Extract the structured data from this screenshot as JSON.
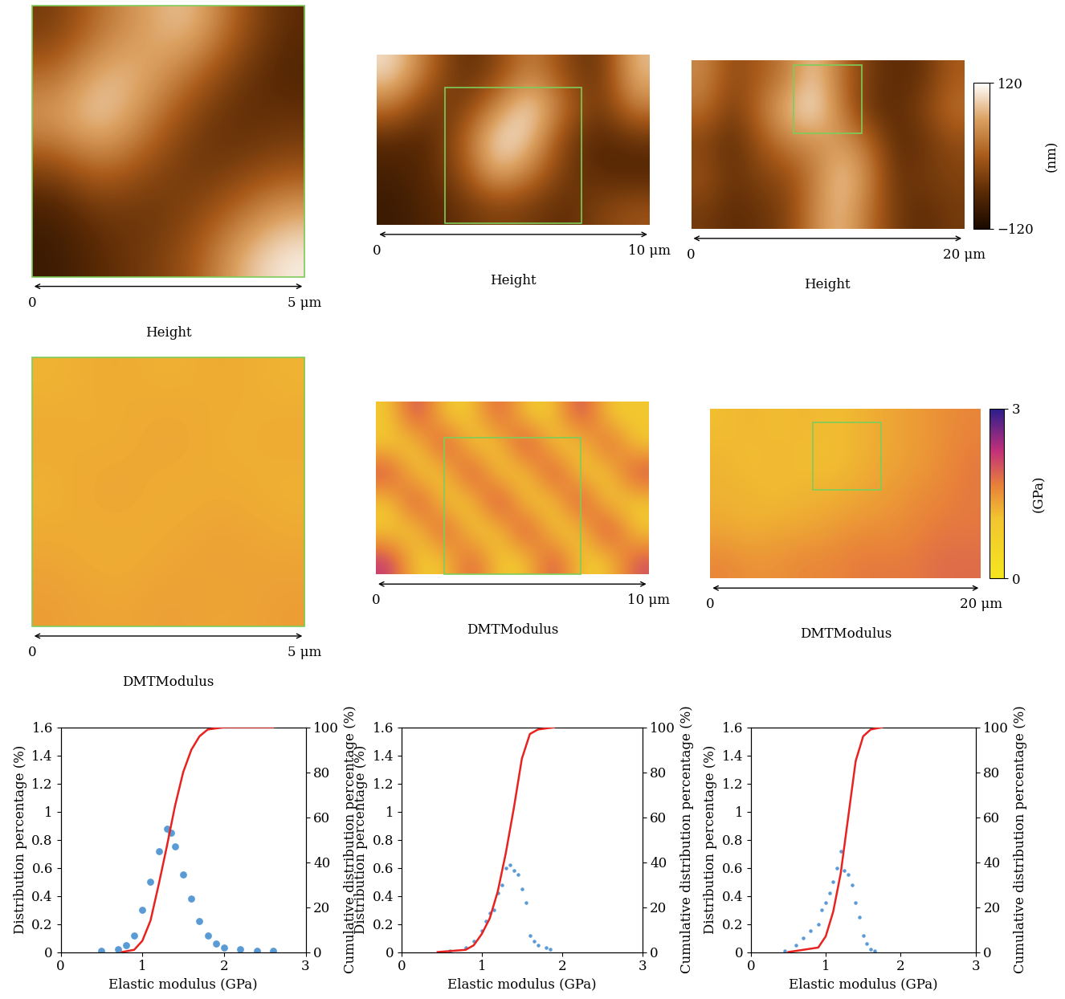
{
  "chart_data": [
    {
      "type": "heatmap",
      "map": "height",
      "xlabel": "Height",
      "xlim": [
        0,
        5
      ],
      "ylim": [
        0,
        5
      ],
      "zlim": [
        -120,
        120
      ],
      "tick_labels": false,
      "region": [
        0,
        0,
        5,
        5
      ],
      "scale_bar": [
        {
          "value": 0,
          "label": "0"
        },
        {
          "value": 5,
          "label": "5 μm"
        }
      ],
      "cells": [
        [
          -40,
          20,
          60,
          90,
          0,
          -60
        ],
        [
          10,
          80,
          70,
          20,
          -40,
          -70
        ],
        [
          60,
          100,
          40,
          -30,
          -60,
          -50
        ],
        [
          -20,
          30,
          -10,
          -50,
          -40,
          -20
        ],
        [
          -80,
          -40,
          -50,
          -30,
          10,
          60
        ],
        [
          -90,
          -60,
          -40,
          -10,
          70,
          110
        ]
      ]
    },
    {
      "type": "heatmap",
      "map": "height",
      "xlabel": "Height",
      "xlim": [
        0,
        10
      ],
      "ylim": [
        0,
        6.24
      ],
      "zlim": [
        -120,
        120
      ],
      "tick_labels": false,
      "region": [
        2.5,
        0.05,
        7.5,
        5.05
      ],
      "scale_bar": [
        {
          "value": 0,
          "label": "0"
        },
        {
          "value": 10,
          "label": "10 μm"
        }
      ],
      "cells": [
        [
          100,
          20,
          -60,
          -30,
          40,
          -20,
          -60,
          80
        ],
        [
          30,
          -40,
          -40,
          40,
          110,
          20,
          -50,
          40
        ],
        [
          -60,
          -70,
          0,
          110,
          90,
          -30,
          -70,
          -50
        ],
        [
          -80,
          -60,
          -20,
          80,
          30,
          -40,
          -60,
          -70
        ],
        [
          -90,
          -70,
          -50,
          -30,
          -40,
          -60,
          -30,
          -10
        ]
      ]
    },
    {
      "type": "heatmap",
      "map": "height",
      "xlabel": "Height",
      "xlim": [
        0,
        20
      ],
      "ylim": [
        0,
        12.35
      ],
      "zlim": [
        -120,
        120
      ],
      "tick_labels": false,
      "region": [
        7.5,
        7.0,
        12.5,
        12.0
      ],
      "scale_bar": [
        {
          "value": 0,
          "label": "0"
        },
        {
          "value": 20,
          "label": "20 μm"
        }
      ],
      "colorbar": {
        "label": "(nm)",
        "lim": [
          -120,
          120
        ],
        "ticks": [
          {
            "value": -120,
            "label": "−120"
          },
          120
        ]
      },
      "cells": [
        [
          40,
          -20,
          0,
          30,
          90,
          20,
          -40,
          -60,
          -50,
          0
        ],
        [
          20,
          -40,
          20,
          80,
          110,
          30,
          -50,
          -60,
          -30,
          20
        ],
        [
          -30,
          -60,
          -10,
          30,
          40,
          60,
          20,
          -60,
          -50,
          -20
        ],
        [
          -10,
          -50,
          -30,
          -20,
          30,
          90,
          40,
          -50,
          -40,
          -30
        ],
        [
          -40,
          -60,
          -50,
          -30,
          40,
          80,
          20,
          -40,
          -60,
          -40
        ]
      ]
    },
    {
      "type": "heatmap",
      "map": "modulus",
      "xlabel": "DMTModulus",
      "xlim": [
        0,
        5
      ],
      "ylim": [
        0,
        5
      ],
      "zlim": [
        0,
        3
      ],
      "tick_labels": false,
      "region": [
        0,
        0,
        5,
        5
      ],
      "scale_bar": [
        {
          "value": 0,
          "label": "0"
        },
        {
          "value": 5,
          "label": "5 μm"
        }
      ],
      "cells": [
        [
          1.2,
          1.3,
          1.2,
          1.3,
          1.2
        ],
        [
          1.3,
          1.2,
          1.4,
          1.2,
          1.3
        ],
        [
          1.2,
          1.4,
          1.2,
          1.3,
          1.2
        ],
        [
          1.3,
          1.2,
          1.3,
          1.4,
          1.3
        ],
        [
          1.4,
          1.3,
          1.4,
          1.3,
          1.4
        ]
      ]
    },
    {
      "type": "heatmap",
      "map": "modulus",
      "xlabel": "DMTModulus",
      "xlim": [
        0,
        10
      ],
      "ylim": [
        0,
        6.32
      ],
      "zlim": [
        0,
        3
      ],
      "tick_labels": false,
      "region": [
        2.5,
        0,
        7.5,
        5
      ],
      "scale_bar": [
        {
          "value": 0,
          "label": "0"
        },
        {
          "value": 10,
          "label": "10 μm"
        }
      ],
      "cells": [
        [
          1.0,
          2.2,
          1.0,
          1.0,
          2.0,
          1.0,
          1.0,
          2.2,
          1.0,
          1.0
        ],
        [
          1.0,
          1.0,
          2.2,
          1.0,
          1.0,
          2.3,
          1.0,
          1.0,
          2.0,
          1.0
        ],
        [
          2.1,
          1.0,
          1.0,
          2.2,
          1.0,
          1.0,
          2.2,
          1.0,
          1.0,
          2.1
        ],
        [
          1.0,
          2.2,
          1.0,
          1.0,
          2.3,
          1.0,
          1.0,
          2.2,
          1.0,
          1.0
        ],
        [
          1.0,
          1.0,
          2.1,
          1.0,
          1.0,
          2.2,
          1.0,
          1.0,
          2.3,
          1.0
        ],
        [
          2.2,
          1.0,
          1.0,
          2.0,
          1.0,
          1.0,
          2.1,
          1.0,
          1.0,
          2.0
        ]
      ]
    },
    {
      "type": "heatmap",
      "map": "modulus",
      "xlabel": "DMTModulus",
      "xlim": [
        0,
        20
      ],
      "ylim": [
        0,
        12.6
      ],
      "zlim": [
        0,
        3
      ],
      "tick_labels": false,
      "region": [
        7.6,
        6.6,
        12.6,
        11.6
      ],
      "scale_bar": [
        {
          "value": 0,
          "label": "0"
        },
        {
          "value": 20,
          "label": "20 μm"
        }
      ],
      "colorbar": {
        "label": "(GPa)",
        "lim": [
          0,
          3
        ],
        "ticks": [
          0,
          3
        ]
      },
      "cells": [
        [
          1.1,
          1.2,
          1.1,
          1.2,
          1.1,
          1.2,
          1.3,
          1.4,
          1.5,
          1.6
        ],
        [
          1.2,
          1.1,
          1.2,
          1.1,
          1.1,
          1.2,
          1.3,
          1.4,
          1.5,
          1.7
        ],
        [
          1.2,
          1.2,
          1.1,
          1.2,
          1.2,
          1.3,
          1.4,
          1.5,
          1.6,
          1.7
        ],
        [
          1.3,
          1.2,
          1.3,
          1.3,
          1.4,
          1.5,
          1.5,
          1.6,
          1.7,
          1.7
        ],
        [
          1.6,
          1.5,
          1.5,
          1.6,
          1.6,
          1.7,
          1.7,
          1.7,
          1.8,
          1.8
        ]
      ]
    },
    {
      "type": "scatter",
      "xlabel": "Elastic modulus (GPa)",
      "ylabel": "Distribution percentage (%)",
      "y2label": "Cumulative distribution percentage (%)",
      "xlim": [
        0,
        3
      ],
      "xticks": [
        0,
        1,
        2,
        3
      ],
      "ylim": [
        0,
        1.6
      ],
      "yticks": [
        0,
        0.2,
        0.4,
        0.6,
        0.8,
        1,
        1.2,
        1.4,
        1.6
      ],
      "y2lim": [
        0,
        100
      ],
      "y2ticks": [
        0,
        20,
        40,
        60,
        80,
        100
      ],
      "series": [
        {
          "type": "scatter",
          "color": "#5b9bd5",
          "marker": "o",
          "x": [
            0.5,
            0.7,
            0.8,
            0.9,
            1.0,
            1.1,
            1.2,
            1.3,
            1.35,
            1.4,
            1.5,
            1.6,
            1.7,
            1.8,
            1.9,
            2.0,
            2.2,
            2.4,
            2.6
          ],
          "values": [
            0.01,
            0.02,
            0.05,
            0.12,
            0.3,
            0.5,
            0.72,
            0.88,
            0.85,
            0.75,
            0.55,
            0.38,
            0.22,
            0.12,
            0.06,
            0.03,
            0.02,
            0.01,
            0.01
          ]
        },
        {
          "type": "line",
          "axis": "y2",
          "color": "#e8231f",
          "x": [
            0.75,
            0.9,
            1.0,
            1.1,
            1.2,
            1.3,
            1.4,
            1.5,
            1.6,
            1.7,
            1.8,
            2.0,
            2.6
          ],
          "values": [
            0,
            1,
            5,
            14,
            30,
            47,
            65,
            80,
            90,
            96,
            99,
            100,
            100
          ]
        }
      ]
    },
    {
      "type": "scatter",
      "xlabel": "Elastic modulus (GPa)",
      "ylabel": "Distribution percentage (%)",
      "y2label": "Cumulative distribution percentage (%)",
      "xlim": [
        0,
        3
      ],
      "xticks": [
        0,
        1,
        2,
        3
      ],
      "ylim": [
        0,
        1.6
      ],
      "yticks": [
        0,
        0.2,
        0.4,
        0.6,
        0.8,
        1,
        1.2,
        1.4,
        1.6
      ],
      "y2lim": [
        0,
        100
      ],
      "y2ticks": [
        0,
        20,
        40,
        60,
        80,
        100
      ],
      "series": [
        {
          "type": "scatter",
          "color": "#5b9bd5",
          "marker": "o",
          "x": [
            0.6,
            0.8,
            0.9,
            1.0,
            1.05,
            1.1,
            1.15,
            1.2,
            1.25,
            1.3,
            1.35,
            1.4,
            1.45,
            1.5,
            1.55,
            1.6,
            1.65,
            1.7,
            1.8,
            1.85
          ],
          "values": [
            0.01,
            0.03,
            0.08,
            0.15,
            0.22,
            0.28,
            0.3,
            0.42,
            0.48,
            0.6,
            0.62,
            0.58,
            0.55,
            0.45,
            0.35,
            0.12,
            0.08,
            0.05,
            0.03,
            0.02
          ]
        },
        {
          "type": "line",
          "axis": "y2",
          "color": "#e8231f",
          "x": [
            0.45,
            0.8,
            0.9,
            1.0,
            1.1,
            1.2,
            1.3,
            1.4,
            1.5,
            1.6,
            1.7,
            1.9
          ],
          "values": [
            0,
            1,
            3,
            8,
            15,
            27,
            44,
            64,
            86,
            97,
            99,
            100
          ]
        }
      ]
    },
    {
      "type": "scatter",
      "xlabel": "Elastic modulus (GPa)",
      "ylabel": "Distribution percentage (%)",
      "y2label": "Cumulative distribution percentage (%)",
      "xlim": [
        0,
        3
      ],
      "xticks": [
        0,
        1,
        2,
        3
      ],
      "ylim": [
        0,
        1.6
      ],
      "yticks": [
        0,
        0.2,
        0.4,
        0.6,
        0.8,
        1,
        1.2,
        1.4,
        1.6
      ],
      "y2lim": [
        0,
        100
      ],
      "y2ticks": [
        0,
        20,
        40,
        60,
        80,
        100
      ],
      "series": [
        {
          "type": "scatter",
          "color": "#5b9bd5",
          "marker": "o",
          "x": [
            0.45,
            0.6,
            0.7,
            0.8,
            0.9,
            0.95,
            1.0,
            1.05,
            1.1,
            1.15,
            1.2,
            1.25,
            1.3,
            1.35,
            1.4,
            1.45,
            1.5,
            1.55,
            1.6,
            1.65
          ],
          "values": [
            0.01,
            0.05,
            0.1,
            0.15,
            0.2,
            0.3,
            0.35,
            0.42,
            0.5,
            0.6,
            0.72,
            0.58,
            0.55,
            0.48,
            0.35,
            0.25,
            0.12,
            0.06,
            0.02,
            0.01
          ]
        },
        {
          "type": "line",
          "axis": "y2",
          "color": "#e8231f",
          "x": [
            0.5,
            0.9,
            1.0,
            1.1,
            1.2,
            1.3,
            1.4,
            1.5,
            1.6,
            1.75
          ],
          "values": [
            0,
            2,
            7,
            18,
            35,
            60,
            85,
            96,
            99,
            100
          ]
        }
      ]
    }
  ]
}
